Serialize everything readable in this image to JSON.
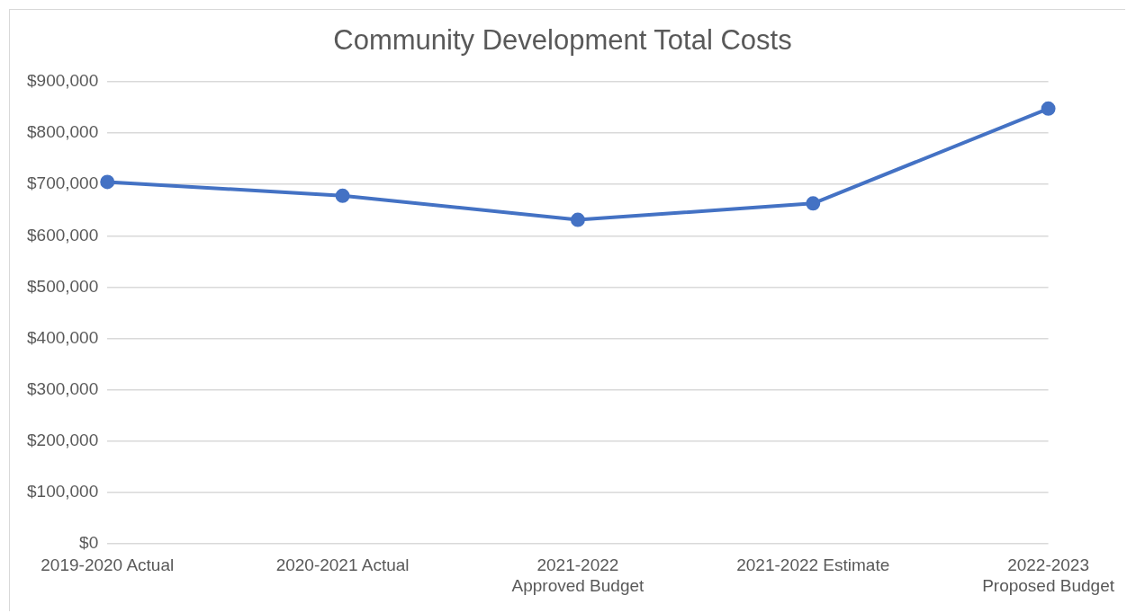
{
  "chart_data": {
    "type": "line",
    "title": "Community Development Total Costs",
    "categories": [
      "2019-2020 Actual",
      "2020-2021 Actual",
      "2021-2022 Approved Budget",
      "2021-2022 Estimate",
      "2022-2023 Proposed Budget"
    ],
    "series": [
      {
        "color": "#4472c4",
        "values": [
          705000,
          678000,
          631000,
          663000,
          848000
        ]
      }
    ],
    "ylim": [
      0,
      900000
    ],
    "yticks": [
      {
        "value": 0,
        "label": "$0"
      },
      {
        "value": 100000,
        "label": "$100,000"
      },
      {
        "value": 200000,
        "label": "$200,000"
      },
      {
        "value": 300000,
        "label": "$300,000"
      },
      {
        "value": 400000,
        "label": "$400,000"
      },
      {
        "value": 500000,
        "label": "$500,000"
      },
      {
        "value": 600000,
        "label": "$600,000"
      },
      {
        "value": 700000,
        "label": "$700,000"
      },
      {
        "value": 800000,
        "label": "$800,000"
      },
      {
        "value": 900000,
        "label": "$900,000"
      }
    ],
    "grid": "y",
    "legend": false,
    "marker": "circle",
    "line_style": "solid"
  }
}
